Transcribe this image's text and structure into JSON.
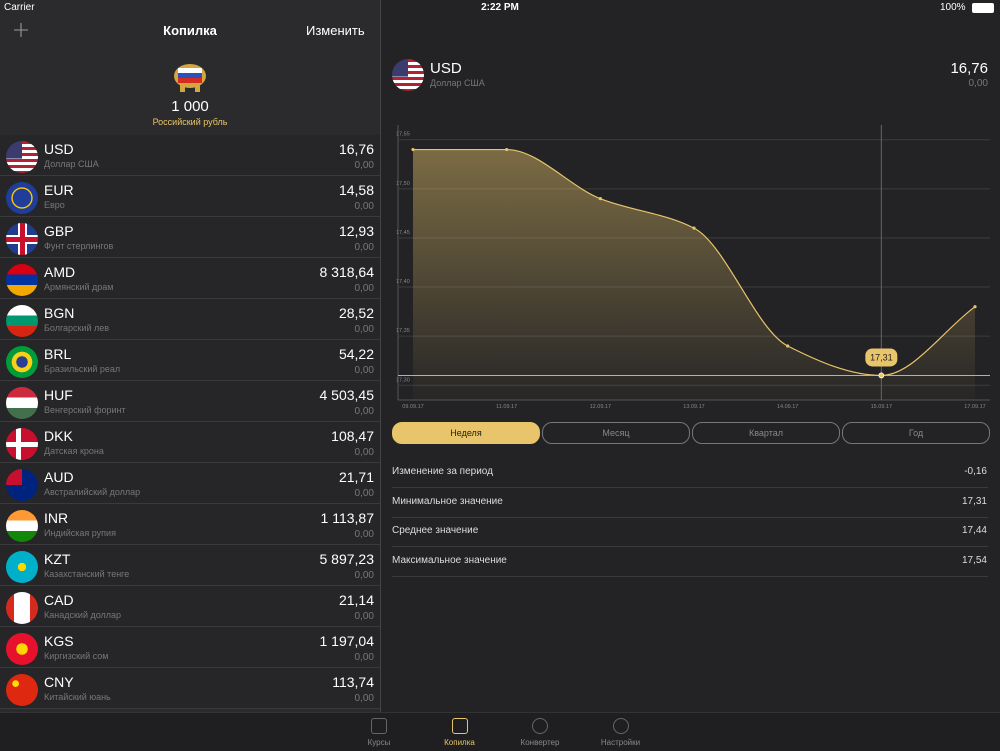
{
  "status_bar": {
    "carrier": "Carrier",
    "time": "2:22 PM",
    "battery": "100%"
  },
  "left_nav": {
    "title": "Копилка",
    "edit": "Изменить"
  },
  "base": {
    "amount": "1 000",
    "name": "Российский рубль"
  },
  "currencies": [
    {
      "code": "USD",
      "name": "Доллар США",
      "value": "16,76",
      "change": "0,00"
    },
    {
      "code": "EUR",
      "name": "Евро",
      "value": "14,58",
      "change": "0,00"
    },
    {
      "code": "GBP",
      "name": "Фунт стерлингов",
      "value": "12,93",
      "change": "0,00"
    },
    {
      "code": "AMD",
      "name": "Армянский драм",
      "value": "8 318,64",
      "change": "0,00"
    },
    {
      "code": "BGN",
      "name": "Болгарский лев",
      "value": "28,52",
      "change": "0,00"
    },
    {
      "code": "BRL",
      "name": "Бразильский реал",
      "value": "54,22",
      "change": "0,00"
    },
    {
      "code": "HUF",
      "name": "Венгерский форинт",
      "value": "4 503,45",
      "change": "0,00"
    },
    {
      "code": "DKK",
      "name": "Датская крона",
      "value": "108,47",
      "change": "0,00"
    },
    {
      "code": "AUD",
      "name": "Австралийский доллар",
      "value": "21,71",
      "change": "0,00"
    },
    {
      "code": "INR",
      "name": "Индийская рупия",
      "value": "1 113,87",
      "change": "0,00"
    },
    {
      "code": "KZT",
      "name": "Казахстанский тенге",
      "value": "5 897,23",
      "change": "0,00"
    },
    {
      "code": "CAD",
      "name": "Канадский доллар",
      "value": "21,14",
      "change": "0,00"
    },
    {
      "code": "KGS",
      "name": "Киргизский сом",
      "value": "1 197,04",
      "change": "0,00"
    },
    {
      "code": "CNY",
      "name": "Китайский юань",
      "value": "113,74",
      "change": "0,00"
    }
  ],
  "detail": {
    "code": "USD",
    "name": "Доллар США",
    "value": "16,76",
    "change": "0,00"
  },
  "chart": {
    "type": "line",
    "color": "#e8c46a",
    "categories": [
      "09.09.17",
      "11.09.17",
      "12.09.17",
      "13.09.17",
      "14.09.17",
      "15.09.17",
      "17.09.17"
    ],
    "values": [
      17.54,
      17.54,
      17.49,
      17.46,
      17.34,
      17.31,
      17.38
    ],
    "value_labels": [
      null,
      null,
      null,
      null,
      null,
      "17,31",
      null
    ],
    "ylim": [
      17.285,
      17.565
    ],
    "yticks": [
      {
        "value": 17.3,
        "label": "17,30"
      },
      {
        "value": 17.35,
        "label": "17,35"
      },
      {
        "value": 17.4,
        "label": "17,40"
      },
      {
        "value": 17.45,
        "label": "17,45"
      },
      {
        "value": 17.5,
        "label": "17,50"
      },
      {
        "value": 17.55,
        "label": "17,55"
      }
    ],
    "grid": true
  },
  "periods": {
    "options": [
      "Неделя",
      "Месяц",
      "Квартал",
      "Год"
    ],
    "active": 0
  },
  "stats": [
    {
      "label": "Изменение за период",
      "value": "-0,16"
    },
    {
      "label": "Минимальное значение",
      "value": "17,31"
    },
    {
      "label": "Среднее значение",
      "value": "17,44"
    },
    {
      "label": "Максимальное значение",
      "value": "17,54"
    }
  ],
  "tabs": {
    "items": [
      "Курсы",
      "Копилка",
      "Конвертер",
      "Настройки"
    ],
    "active": 1
  }
}
